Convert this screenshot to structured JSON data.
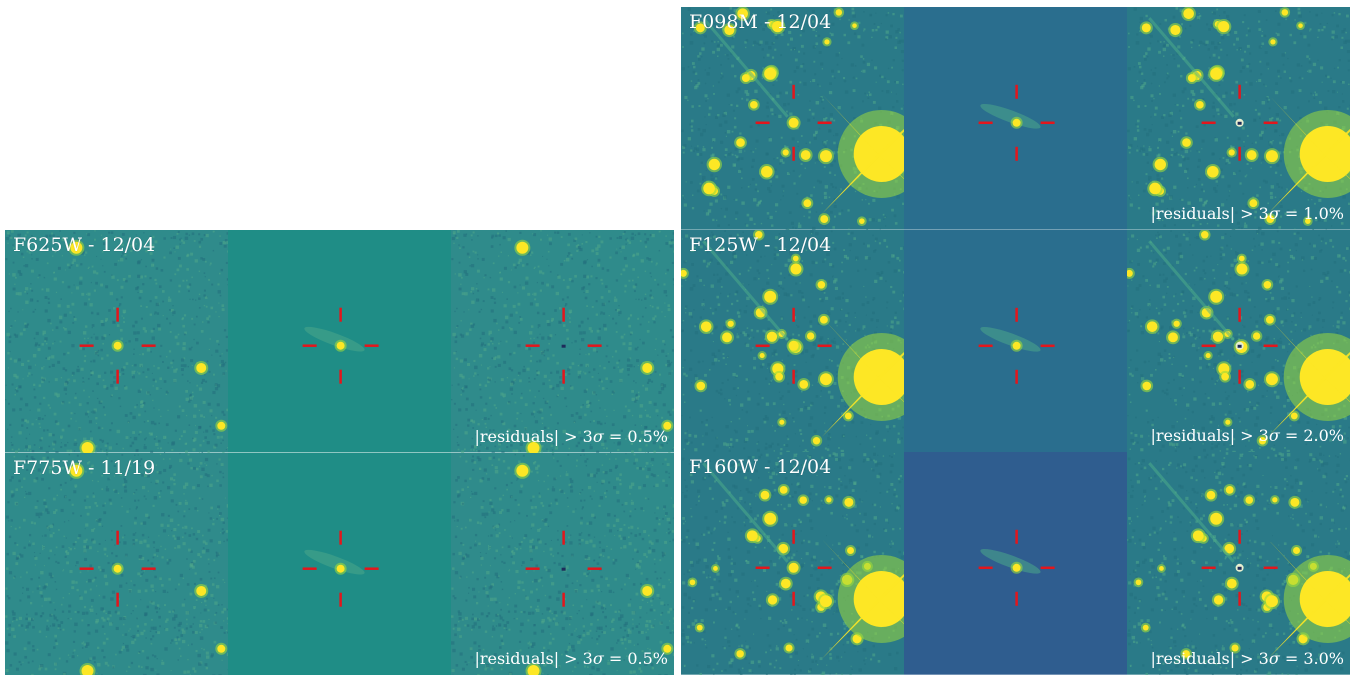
{
  "colors": {
    "noise_bg": "#2f8b8b",
    "model_bg_wide": "#1f8d86",
    "model_bg_ir": "#2a6e8e",
    "model_bg_f160": "#2f5d8f",
    "nir_bg": "#2a7a88",
    "star": "#fde725",
    "star_halo": "#9bd93c",
    "crosshair": "#e3161c",
    "text": "#ffffff"
  },
  "panels_left": [
    {
      "filter": "F625W",
      "date": "12/04",
      "label": "F625W - 12/04",
      "residual_note": {
        "prefix": "|residuals| > 3",
        "sigma": "σ",
        "suffix": " = 0.5%"
      }
    },
    {
      "filter": "F775W",
      "date": "11/19",
      "label": "F775W - 11/19",
      "residual_note": {
        "prefix": "|residuals| > 3",
        "sigma": "σ",
        "suffix": " = 0.5%"
      }
    }
  ],
  "panels_right": [
    {
      "filter": "F098M",
      "date": "12/04",
      "label": "F098M - 12/04",
      "residual_note": {
        "prefix": "|residuals| > 3",
        "sigma": "σ",
        "suffix": " = 1.0%"
      }
    },
    {
      "filter": "F125W",
      "date": "12/04",
      "label": "F125W - 12/04",
      "residual_note": {
        "prefix": "|residuals| > 3",
        "sigma": "σ",
        "suffix": " = 2.0%"
      }
    },
    {
      "filter": "F160W",
      "date": "12/04",
      "label": "F160W - 12/04",
      "residual_note": {
        "prefix": "|residuals| > 3",
        "sigma": "σ",
        "suffix": " = 3.0%"
      }
    }
  ],
  "column_kinds": [
    "data",
    "model",
    "residual"
  ]
}
